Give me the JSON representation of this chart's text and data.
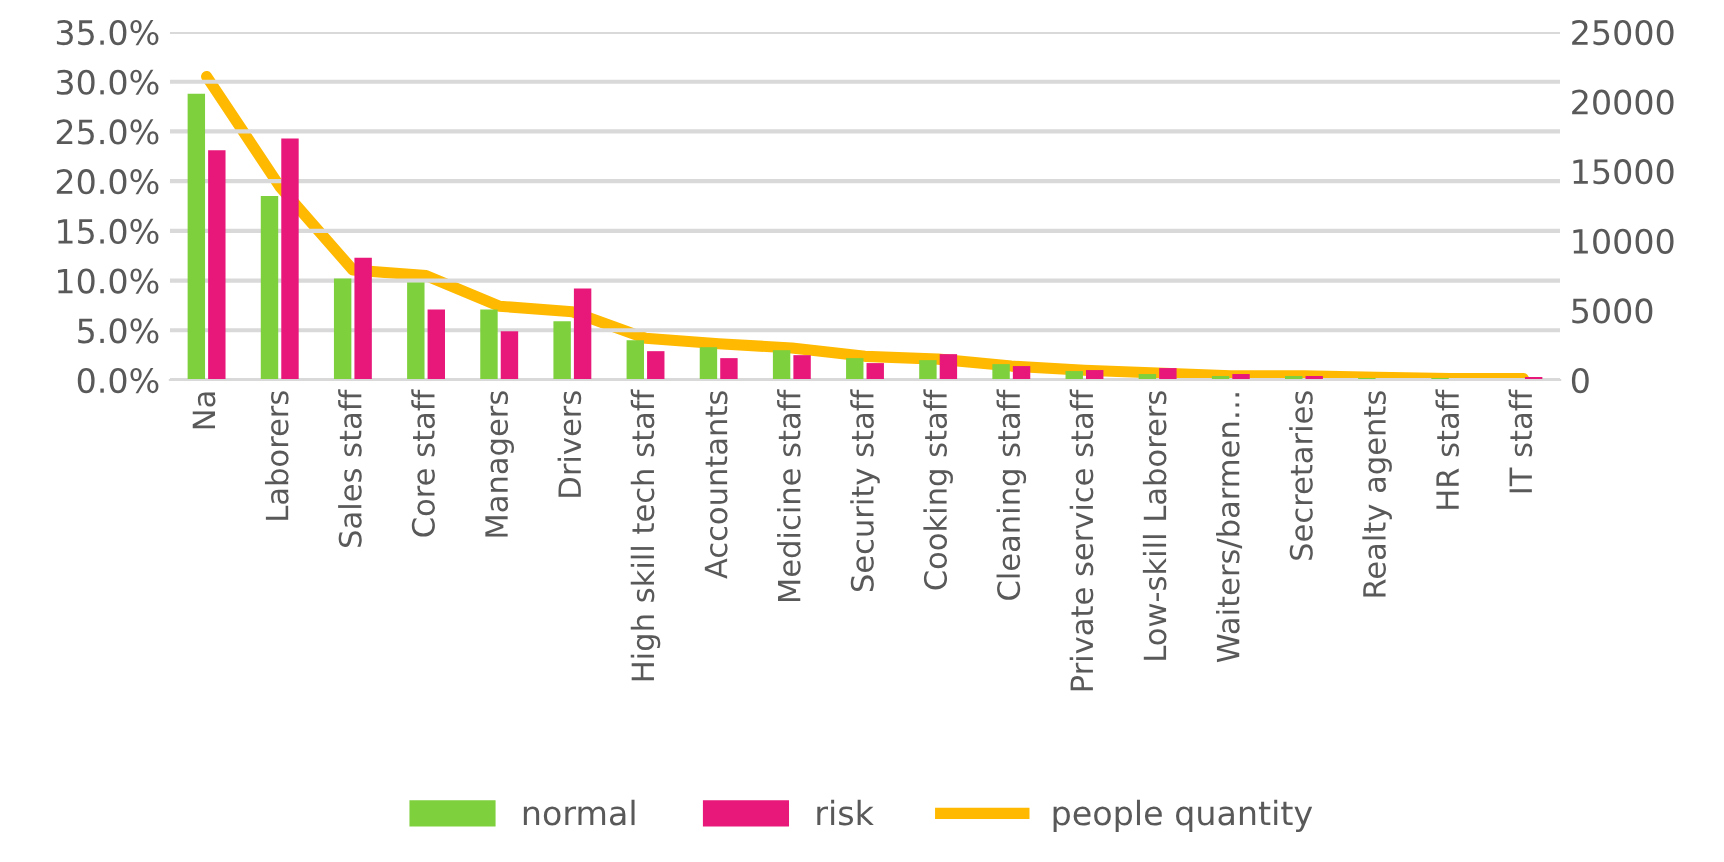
{
  "chart_data": {
    "type": "bar",
    "categories": [
      "Na",
      "Laborers",
      "Sales staff",
      "Core staff",
      "Managers",
      "Drivers",
      "High skill tech staff",
      "Accountants",
      "Medicine staff",
      "Security staff",
      "Cooking staff",
      "Cleaning staff",
      "Private service staff",
      "Low-skill Laborers",
      "Waiters/barmen…",
      "Secretaries",
      "Realty agents",
      "HR staff",
      "IT staff"
    ],
    "series": [
      {
        "name": "normal",
        "color": "#7ed13c",
        "values": [
          0.288,
          0.185,
          0.102,
          0.098,
          0.071,
          0.059,
          0.04,
          0.033,
          0.03,
          0.022,
          0.02,
          0.016,
          0.009,
          0.006,
          0.004,
          0.004,
          0.002,
          0.002,
          null
        ]
      },
      {
        "name": "risk",
        "color": "#e8187a",
        "values": [
          0.231,
          0.243,
          0.123,
          0.071,
          0.049,
          0.092,
          0.029,
          0.022,
          0.025,
          0.017,
          0.026,
          0.014,
          0.01,
          0.012,
          0.006,
          0.004,
          null,
          null,
          0.003
        ]
      },
      {
        "name": "people quantity",
        "color": "#ffb900",
        "type": "line",
        "axis": "y2",
        "values": [
          21800,
          13900,
          7900,
          7500,
          5300,
          4900,
          3000,
          2600,
          2300,
          1700,
          1500,
          1000,
          700,
          500,
          300,
          300,
          200,
          100,
          100
        ]
      }
    ],
    "ylim": [
      0,
      0.35
    ],
    "yticks": [
      {
        "value": 0,
        "label": "0.0%"
      },
      {
        "value": 0.05,
        "label": "5.0%"
      },
      {
        "value": 0.1,
        "label": "10.0%"
      },
      {
        "value": 0.15,
        "label": "15.0%"
      },
      {
        "value": 0.2,
        "label": "20.0%"
      },
      {
        "value": 0.25,
        "label": "25.0%"
      },
      {
        "value": 0.3,
        "label": "30.0%"
      },
      {
        "value": 0.35,
        "label": "35.0%"
      }
    ],
    "y2lim": [
      0,
      25000
    ],
    "y2ticks": [
      0,
      5000,
      10000,
      15000,
      20000,
      25000
    ],
    "grid": "y",
    "legend": "bottom",
    "marker": "none",
    "line_style": "solid"
  }
}
